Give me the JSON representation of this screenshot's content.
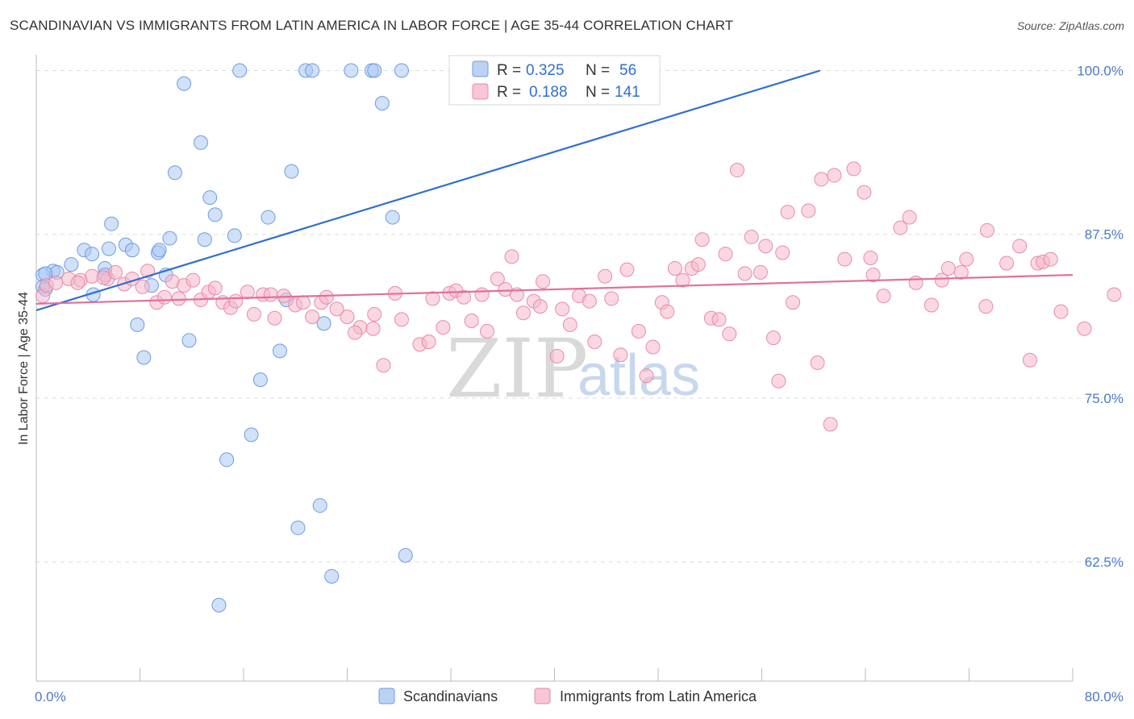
{
  "header": {
    "title": "SCANDINAVIAN VS IMMIGRANTS FROM LATIN AMERICA IN LABOR FORCE | AGE 35-44 CORRELATION CHART",
    "source": "Source: ZipAtlas.com"
  },
  "watermark": {
    "part1": "ZIP",
    "part2": "atlas"
  },
  "legend": {
    "r_label": "R =",
    "n_label": "N =",
    "rows": [
      {
        "r": "0.325",
        "n": "56",
        "color": "#a9c8f2"
      },
      {
        "r": "0.188",
        "n": "141",
        "color": "#f6b8cb"
      }
    ]
  },
  "chart_data": {
    "type": "scatter",
    "title": "SCANDINAVIAN VS IMMIGRANTS FROM LATIN AMERICA IN LABOR FORCE | AGE 35-44 CORRELATION CHART",
    "ylabel": "In Labor Force | Age 35-44",
    "xlabel": "",
    "xlim": [
      0,
      80
    ],
    "ylim": [
      53.4,
      101.2
    ],
    "x_tick_labels": [
      {
        "value": 0,
        "label": "0.0%"
      },
      {
        "value": 80,
        "label": "80.0%"
      }
    ],
    "y_tick_labels": [
      {
        "value": 100,
        "label": "100.0%"
      },
      {
        "value": 87.5,
        "label": "87.5%"
      },
      {
        "value": 75,
        "label": "75.0%"
      },
      {
        "value": 62.5,
        "label": "62.5%"
      }
    ],
    "y_gridlines": [
      100,
      87.5,
      75,
      62.5
    ],
    "grid": true,
    "legend_position": "top-center",
    "series": [
      {
        "name": "Scandinavians",
        "color": "#a9c8f2",
        "stroke": "#6f9be0",
        "trend_color": "#2f6fd1",
        "trend": {
          "x0": 0,
          "y0": 81.7,
          "x1": 60.5,
          "y1": 100
        },
        "points": [
          [
            15.7,
            100
          ],
          [
            20.8,
            100
          ],
          [
            21.3,
            100
          ],
          [
            24.3,
            100
          ],
          [
            25.9,
            100
          ],
          [
            26.1,
            100
          ],
          [
            28.2,
            100
          ],
          [
            37.9,
            100
          ],
          [
            47.6,
            100
          ],
          [
            11.4,
            99
          ],
          [
            26.7,
            97.5
          ],
          [
            12.7,
            94.5
          ],
          [
            10.7,
            92.2
          ],
          [
            19.7,
            92.3
          ],
          [
            13.4,
            90.3
          ],
          [
            13.8,
            89
          ],
          [
            17.9,
            88.8
          ],
          [
            27.5,
            88.8
          ],
          [
            5.8,
            88.3
          ],
          [
            15.3,
            87.4
          ],
          [
            10.3,
            87.2
          ],
          [
            13.0,
            87.1
          ],
          [
            6.9,
            86.7
          ],
          [
            3.7,
            86.3
          ],
          [
            5.6,
            86.4
          ],
          [
            9.4,
            86.1
          ],
          [
            4.3,
            86.0
          ],
          [
            7.4,
            86.3
          ],
          [
            9.5,
            86.3
          ],
          [
            2.7,
            85.2
          ],
          [
            5.3,
            84.9
          ],
          [
            1.3,
            84.7
          ],
          [
            0.5,
            84.4
          ],
          [
            1.6,
            84.6
          ],
          [
            0.7,
            84.5
          ],
          [
            5.3,
            84.4
          ],
          [
            10.0,
            84.4
          ],
          [
            8.9,
            83.6
          ],
          [
            0.5,
            83.5
          ],
          [
            0.7,
            83.3
          ],
          [
            4.4,
            82.9
          ],
          [
            19.3,
            82.5
          ],
          [
            7.8,
            80.6
          ],
          [
            22.2,
            80.7
          ],
          [
            11.8,
            79.4
          ],
          [
            8.3,
            78.1
          ],
          [
            18.8,
            78.6
          ],
          [
            17.3,
            76.4
          ],
          [
            16.6,
            72.2
          ],
          [
            14.7,
            70.3
          ],
          [
            21.9,
            66.8
          ],
          [
            20.2,
            65.1
          ],
          [
            28.5,
            63.0
          ],
          [
            22.8,
            61.4
          ],
          [
            14.1,
            59.2
          ]
        ]
      },
      {
        "name": "Immigrants from Latin America",
        "color": "#f6b8cb",
        "stroke": "#e98aa8",
        "trend_color": "#e0709a",
        "trend": {
          "x0": 0,
          "y0": 82.2,
          "x1": 80,
          "y1": 84.4
        },
        "points": [
          [
            0.5,
            82.8
          ],
          [
            0.8,
            83.6
          ],
          [
            1.5,
            83.8
          ],
          [
            2.5,
            84.1
          ],
          [
            3.4,
            84.0
          ],
          [
            3.2,
            83.8
          ],
          [
            4.3,
            84.3
          ],
          [
            5.5,
            84.1
          ],
          [
            5.2,
            84.2
          ],
          [
            6.1,
            84.6
          ],
          [
            6.8,
            83.7
          ],
          [
            7.4,
            84.1
          ],
          [
            8.2,
            83.5
          ],
          [
            8.6,
            84.7
          ],
          [
            9.3,
            82.3
          ],
          [
            9.9,
            82.7
          ],
          [
            10.5,
            83.9
          ],
          [
            11.0,
            82.6
          ],
          [
            11.4,
            83.6
          ],
          [
            12.1,
            84.0
          ],
          [
            12.7,
            82.5
          ],
          [
            13.3,
            83.1
          ],
          [
            13.8,
            83.4
          ],
          [
            14.4,
            82.3
          ],
          [
            15.0,
            81.9
          ],
          [
            15.4,
            82.4
          ],
          [
            16.3,
            83.1
          ],
          [
            16.8,
            81.4
          ],
          [
            17.5,
            82.9
          ],
          [
            18.1,
            82.9
          ],
          [
            18.4,
            81.1
          ],
          [
            19.1,
            82.8
          ],
          [
            20.0,
            82.1
          ],
          [
            20.6,
            82.3
          ],
          [
            21.3,
            81.2
          ],
          [
            22.0,
            82.3
          ],
          [
            22.4,
            82.7
          ],
          [
            23.2,
            81.8
          ],
          [
            24.0,
            81.2
          ],
          [
            25.0,
            80.4
          ],
          [
            24.6,
            80.0
          ],
          [
            26.1,
            81.4
          ],
          [
            26.0,
            80.3
          ],
          [
            26.8,
            77.5
          ],
          [
            27.7,
            83.0
          ],
          [
            28.2,
            81.0
          ],
          [
            29.6,
            79.1
          ],
          [
            30.3,
            79.3
          ],
          [
            30.6,
            82.6
          ],
          [
            31.4,
            80.4
          ],
          [
            31.9,
            83.0
          ],
          [
            32.4,
            83.2
          ],
          [
            33.0,
            82.7
          ],
          [
            33.6,
            80.9
          ],
          [
            34.4,
            82.9
          ],
          [
            34.8,
            80.1
          ],
          [
            35.6,
            84.1
          ],
          [
            36.2,
            83.3
          ],
          [
            36.7,
            85.8
          ],
          [
            37.1,
            82.9
          ],
          [
            37.6,
            81.5
          ],
          [
            38.4,
            82.4
          ],
          [
            38.9,
            82.0
          ],
          [
            39.1,
            83.9
          ],
          [
            40.2,
            78.2
          ],
          [
            40.6,
            81.8
          ],
          [
            41.2,
            80.6
          ],
          [
            41.9,
            82.8
          ],
          [
            42.7,
            82.4
          ],
          [
            43.1,
            79.3
          ],
          [
            43.9,
            84.3
          ],
          [
            44.4,
            82.6
          ],
          [
            45.1,
            78.3
          ],
          [
            45.6,
            84.8
          ],
          [
            46.5,
            80.1
          ],
          [
            47.1,
            76.7
          ],
          [
            47.6,
            78.9
          ],
          [
            48.3,
            82.3
          ],
          [
            48.7,
            81.6
          ],
          [
            49.3,
            84.9
          ],
          [
            49.9,
            84.0
          ],
          [
            50.6,
            84.9
          ],
          [
            51.1,
            85.2
          ],
          [
            51.4,
            87.1
          ],
          [
            52.1,
            81.1
          ],
          [
            52.7,
            81.0
          ],
          [
            53.2,
            86.0
          ],
          [
            53.5,
            79.9
          ],
          [
            54.1,
            92.4
          ],
          [
            54.7,
            84.5
          ],
          [
            55.2,
            87.3
          ],
          [
            55.9,
            84.6
          ],
          [
            56.3,
            86.6
          ],
          [
            56.9,
            79.6
          ],
          [
            57.3,
            76.3
          ],
          [
            57.6,
            86.1
          ],
          [
            58.0,
            89.2
          ],
          [
            58.4,
            82.3
          ],
          [
            59.6,
            89.3
          ],
          [
            60.3,
            77.7
          ],
          [
            60.6,
            91.7
          ],
          [
            61.3,
            73.0
          ],
          [
            61.6,
            92.0
          ],
          [
            62.4,
            85.6
          ],
          [
            63.1,
            92.5
          ],
          [
            63.9,
            90.7
          ],
          [
            64.4,
            85.7
          ],
          [
            64.6,
            84.4
          ],
          [
            65.4,
            82.8
          ],
          [
            66.7,
            88.0
          ],
          [
            67.4,
            88.8
          ],
          [
            67.9,
            83.8
          ],
          [
            69.1,
            82.1
          ],
          [
            69.9,
            84.0
          ],
          [
            70.4,
            84.9
          ],
          [
            71.4,
            84.6
          ],
          [
            71.8,
            85.6
          ],
          [
            73.4,
            87.8
          ],
          [
            73.3,
            82.0
          ],
          [
            74.9,
            85.3
          ],
          [
            75.9,
            86.6
          ],
          [
            76.7,
            77.9
          ],
          [
            77.3,
            85.3
          ],
          [
            77.7,
            85.4
          ],
          [
            78.3,
            85.6
          ],
          [
            79.1,
            81.6
          ],
          [
            80.9,
            80.3
          ],
          [
            83.2,
            82.9
          ]
        ]
      }
    ]
  }
}
